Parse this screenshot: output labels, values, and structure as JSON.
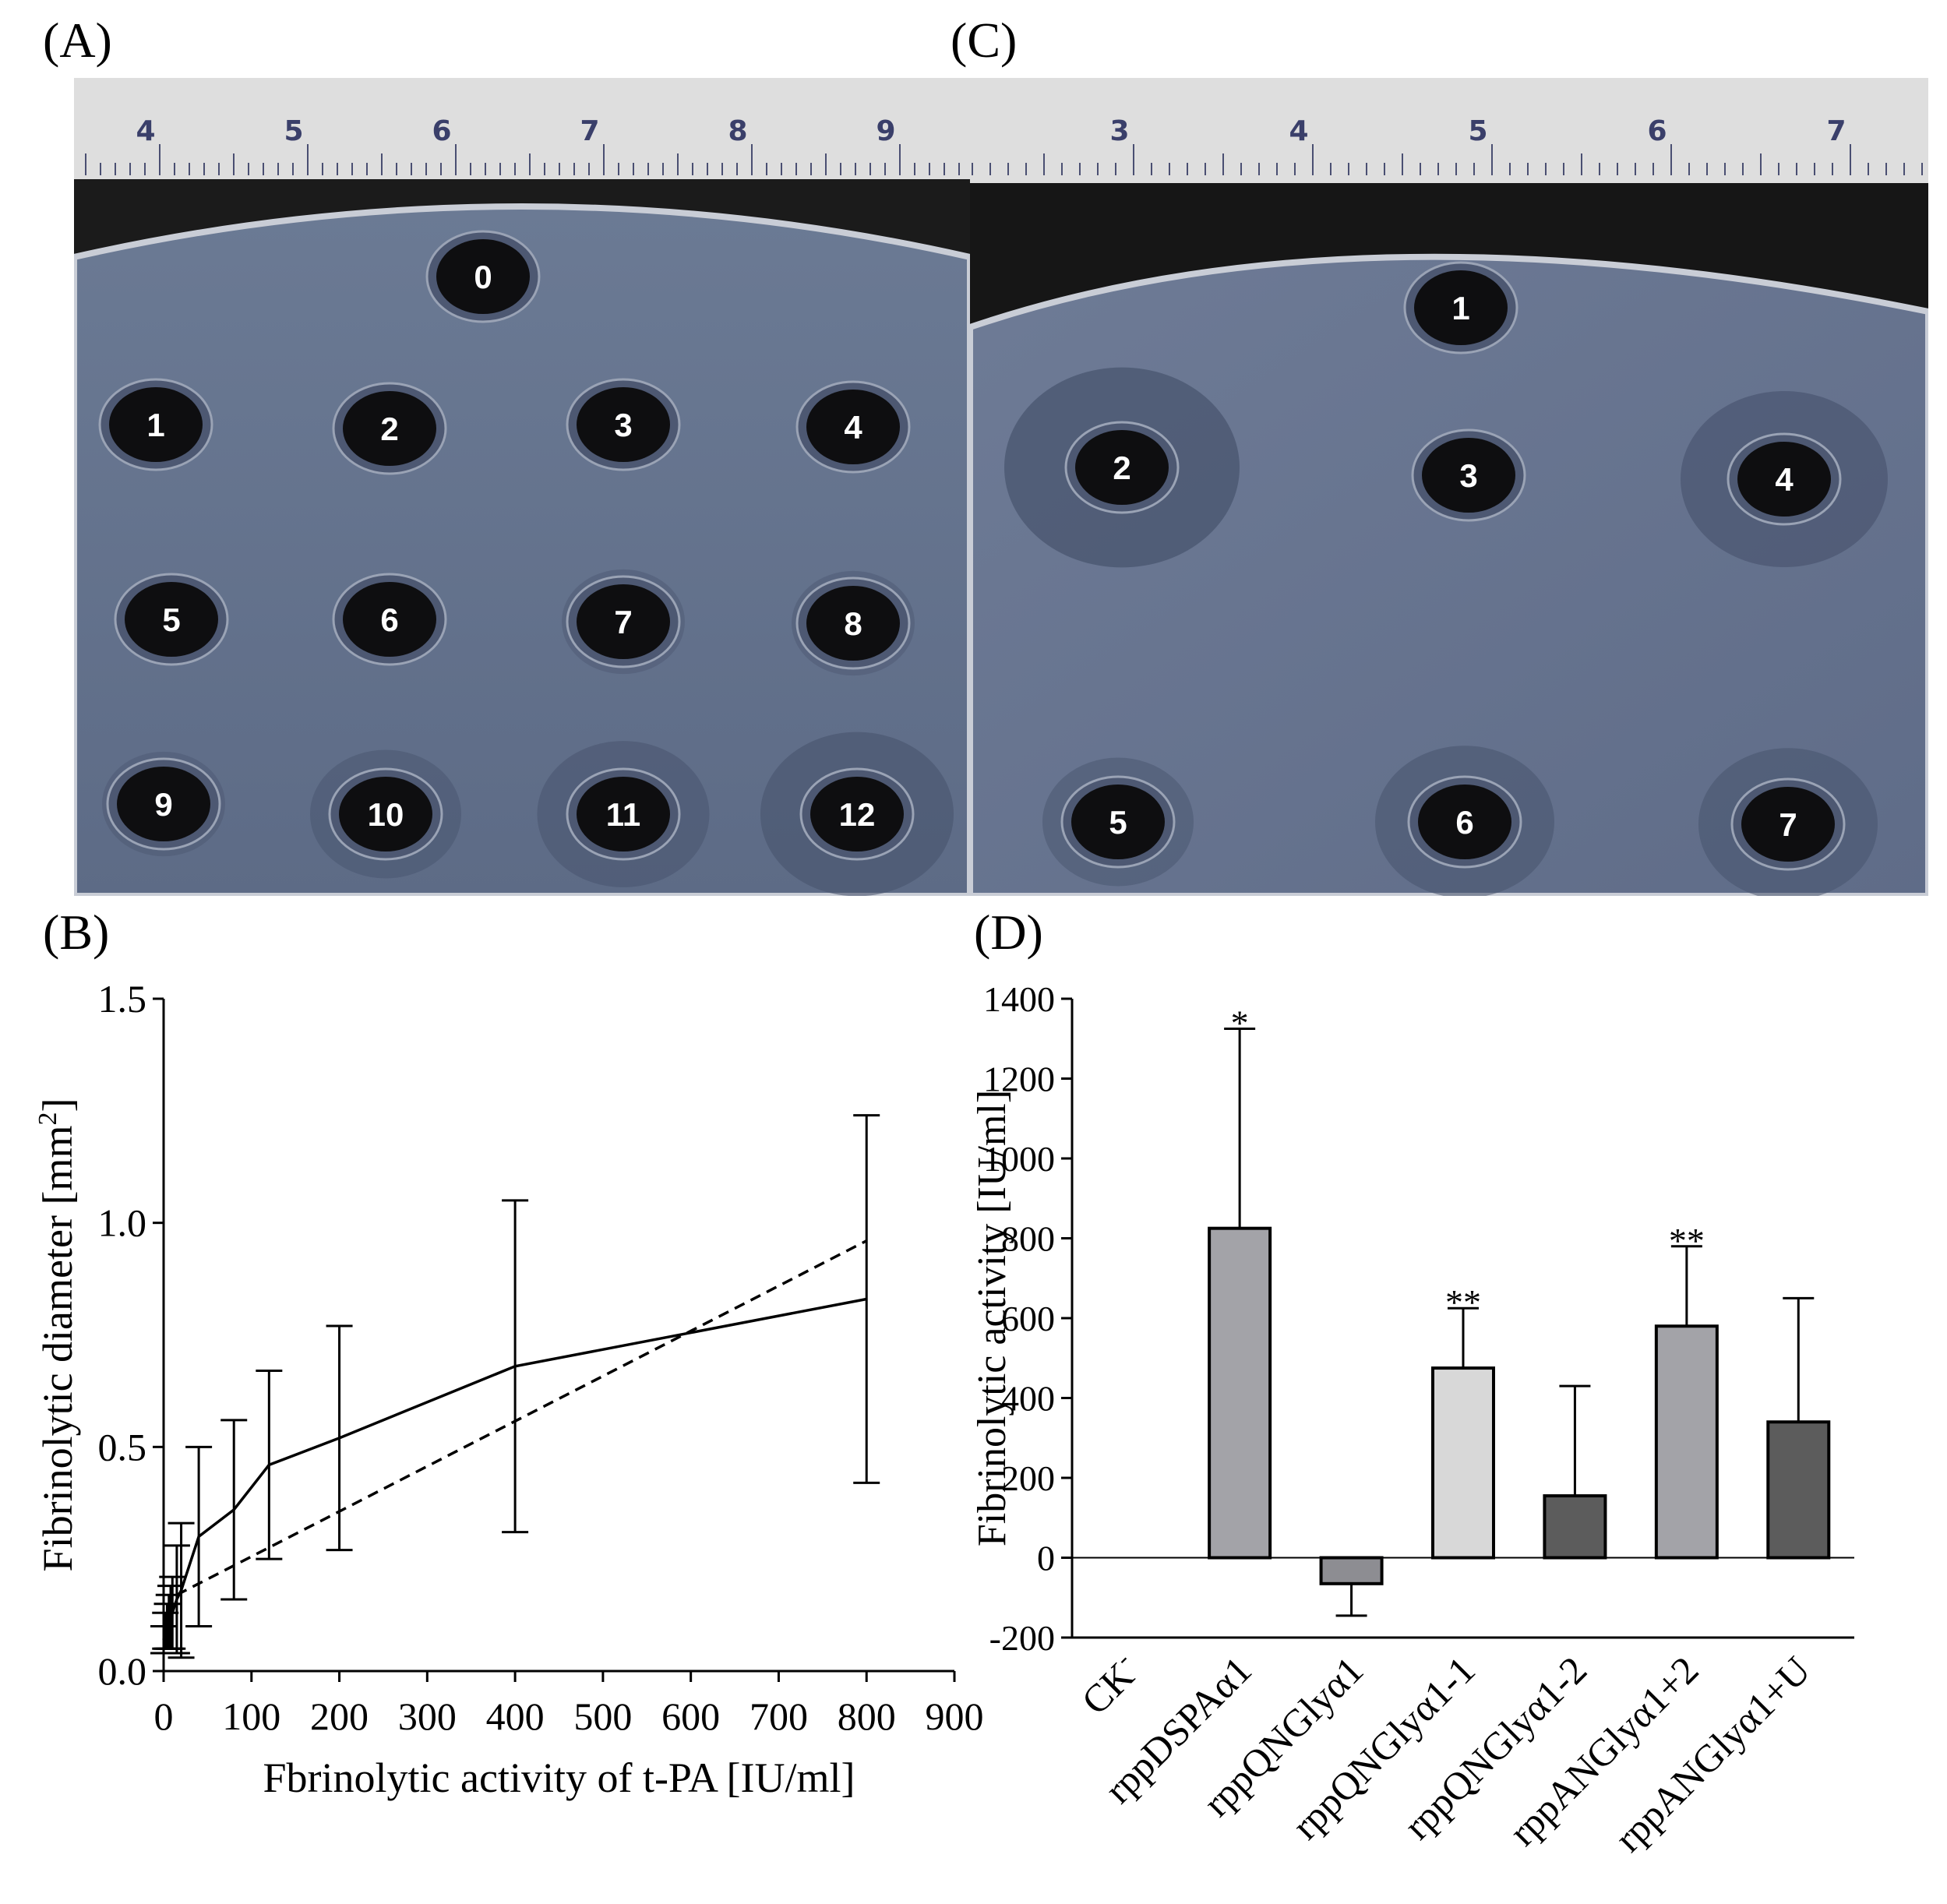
{
  "panels": {
    "a": {
      "label": "(A)",
      "ruler_numbers": [
        "4",
        "5",
        "6",
        "7",
        "8",
        "9"
      ],
      "wells": [
        {
          "label": "0",
          "halo": 0
        },
        {
          "label": "1",
          "halo": 0
        },
        {
          "label": "2",
          "halo": 0
        },
        {
          "label": "3",
          "halo": 0
        },
        {
          "label": "4",
          "halo": 0
        },
        {
          "label": "5",
          "halo": 0
        },
        {
          "label": "6",
          "halo": 0
        },
        {
          "label": "7",
          "halo": 0.1
        },
        {
          "label": "8",
          "halo": 0.1
        },
        {
          "label": "9",
          "halo": 0.1
        },
        {
          "label": "10",
          "halo": 0.3
        },
        {
          "label": "11",
          "halo": 0.45
        },
        {
          "label": "12",
          "halo": 0.6
        }
      ]
    },
    "c": {
      "label": "(C)",
      "ruler_numbers": [
        "3",
        "4",
        "5",
        "6",
        "7"
      ],
      "wells": [
        {
          "label": "1",
          "halo": 0
        },
        {
          "label": "2",
          "halo": 0.9
        },
        {
          "label": "3",
          "halo": 0
        },
        {
          "label": "4",
          "halo": 0.7
        },
        {
          "label": "5",
          "halo": 0.3
        },
        {
          "label": "6",
          "halo": 0.5
        },
        {
          "label": "7",
          "halo": 0.5
        }
      ]
    },
    "b": {
      "label": "(B)"
    },
    "d": {
      "label": "(D)"
    }
  },
  "chart_data": [
    {
      "panel": "B",
      "type": "line",
      "xlabel": "Fbrinolytic activity of t-PA [IU/ml]",
      "ylabel": "Fibrinolytic diameter [mm",
      "ylabel_superscript": "2",
      "ylabel_close": "]",
      "xlim": [
        0,
        900
      ],
      "ylim": [
        0,
        1.5
      ],
      "x_ticks": [
        0,
        100,
        200,
        300,
        400,
        500,
        600,
        700,
        800,
        900
      ],
      "y_ticks": [
        {
          "value": 0,
          "label": "0.0"
        },
        {
          "value": 0.5,
          "label": "0.5"
        },
        {
          "value": 1.0,
          "label": "1.0"
        },
        {
          "value": 1.5,
          "label": "1.5"
        }
      ],
      "grid": false,
      "series": [
        {
          "style": "solid",
          "x": [
            0,
            2,
            4,
            6,
            8,
            10,
            15,
            20,
            40,
            80,
            120,
            200,
            400,
            800
          ],
          "y": [
            0.07,
            0.09,
            0.1,
            0.11,
            0.12,
            0.13,
            0.16,
            0.18,
            0.3,
            0.36,
            0.46,
            0.52,
            0.68,
            0.83
          ],
          "error": [
            0.03,
            0.04,
            0.05,
            0.06,
            0.07,
            0.08,
            0.12,
            0.15,
            0.2,
            0.2,
            0.21,
            0.25,
            0.37,
            0.41
          ]
        },
        {
          "style": "dashed",
          "x": [
            15,
            800
          ],
          "y": [
            0.17,
            0.96
          ]
        }
      ]
    },
    {
      "panel": "D",
      "type": "bar",
      "ylabel": "Fibrinolytic activity [IU/ml]",
      "ylim": [
        -200,
        1400
      ],
      "y_ticks": [
        -200,
        0,
        200,
        400,
        600,
        800,
        1000,
        1200,
        1400
      ],
      "grid": false,
      "categories": [
        "CK",
        "rppDSPAα1",
        "rppQNGlyα1",
        "rppQNGlyα1-1",
        "rppQNGlyα1-2",
        "rppANGlyα1+2",
        "rppANGlyα1+U"
      ],
      "category_superscripts": [
        "-",
        "",
        "",
        "",
        "",
        "",
        ""
      ],
      "values": [
        0,
        825,
        -65,
        475,
        155,
        580,
        340
      ],
      "error": [
        0,
        500,
        80,
        150,
        275,
        200,
        310
      ],
      "significance": [
        "",
        "*",
        "",
        "**",
        "",
        "**",
        ""
      ],
      "colors": [
        "#ffffff",
        "#a3a3a8",
        "#8d8d92",
        "#d8d8d8",
        "#5c5c5c",
        "#a3a3a8",
        "#5c5c5c"
      ]
    }
  ]
}
